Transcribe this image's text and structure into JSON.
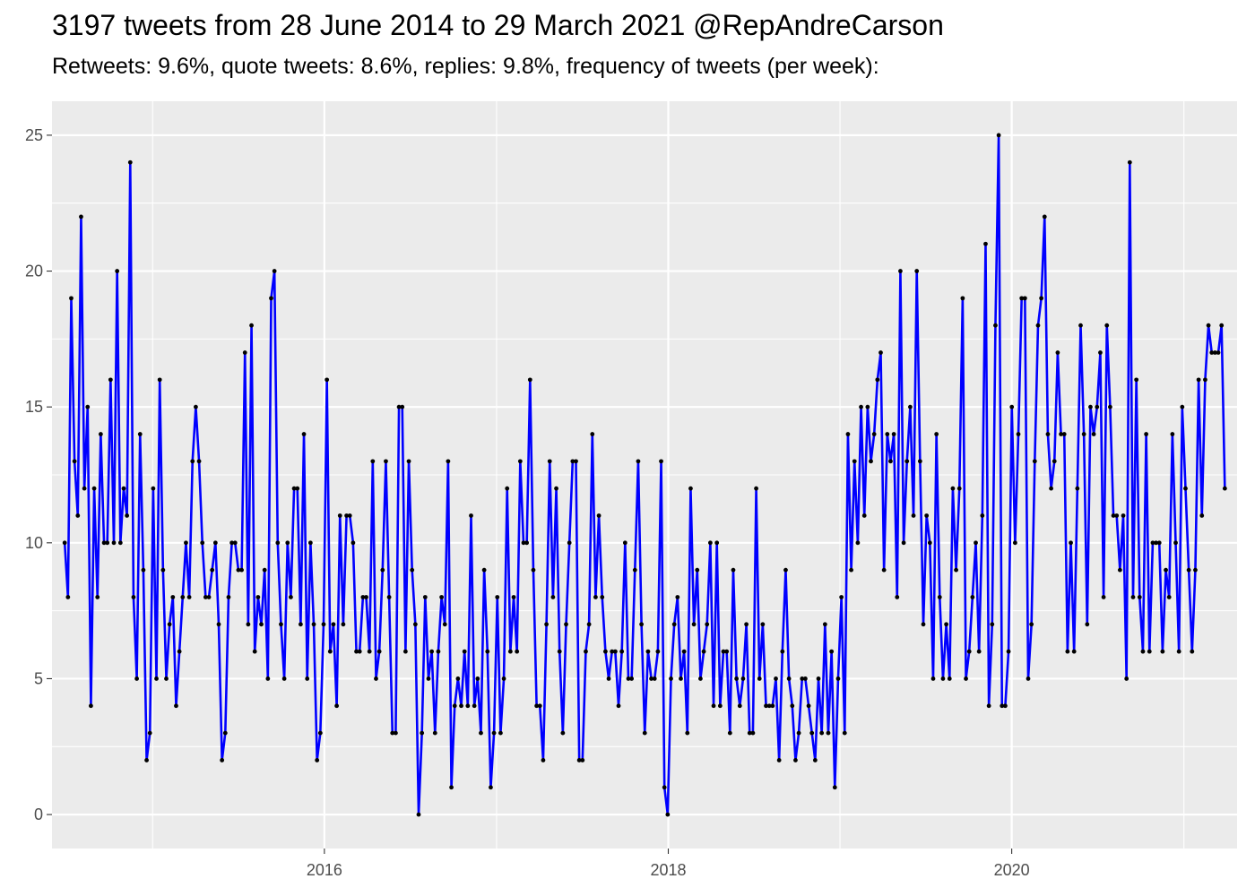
{
  "title": "3197 tweets from 28 June 2014 to 29 March 2021 @RepAndreCarson",
  "subtitle": "Retweets: 9.6%, quote tweets: 8.6%, replies: 9.8%, frequency of tweets (per week):",
  "colors": {
    "panel_background": "#ebebeb",
    "grid": "#ffffff",
    "line": "#0000ff",
    "point": "#000000",
    "tick_text": "#4d4d4d"
  },
  "chart_data": {
    "type": "line",
    "title": "3197 tweets from 28 June 2014 to 29 March 2021 @RepAndreCarson",
    "subtitle": "Retweets: 9.6%, quote tweets: 8.6%, replies: 9.8%, frequency of tweets (per week):",
    "xlabel": "",
    "ylabel": "",
    "x_start": "2014-06-28",
    "x_end": "2021-03-29",
    "xlim": [
      "2014-06-01",
      "2021-04-24"
    ],
    "ylim": [
      -1.25,
      26.25
    ],
    "x_ticks": [
      {
        "label": "2016",
        "date": "2016-01-01"
      },
      {
        "label": "2018",
        "date": "2018-01-01"
      },
      {
        "label": "2020",
        "date": "2020-01-01"
      }
    ],
    "y_ticks": [
      0,
      5,
      10,
      15,
      20,
      25
    ],
    "grid": true,
    "series": [
      {
        "values": [
          10,
          8,
          19,
          13,
          11,
          22,
          12,
          15,
          4,
          12,
          8,
          14,
          10,
          10,
          16,
          10,
          20,
          10,
          12,
          11,
          24,
          8,
          5,
          14,
          9,
          2,
          3,
          12,
          5,
          16,
          9,
          5,
          7,
          8,
          4,
          6,
          8,
          10,
          8,
          13,
          15,
          13,
          10,
          8,
          8,
          9,
          10,
          7,
          2,
          3,
          8,
          10,
          10,
          9,
          9,
          17,
          7,
          18,
          6,
          8,
          7,
          9,
          5,
          19,
          20,
          10,
          7,
          5,
          10,
          8,
          12,
          12,
          7,
          14,
          5,
          10,
          7,
          2,
          3,
          7,
          16,
          6,
          7,
          4,
          11,
          7,
          11,
          11,
          10,
          6,
          6,
          8,
          8,
          6,
          13,
          5,
          6,
          9,
          13,
          8,
          3,
          3,
          15,
          15,
          6,
          13,
          9,
          7,
          0,
          3,
          8,
          5,
          6,
          3,
          6,
          8,
          7,
          13,
          1,
          4,
          5,
          4,
          6,
          4,
          11,
          4,
          5,
          3,
          9,
          6,
          1,
          3,
          8,
          3,
          5,
          12,
          6,
          8,
          6,
          13,
          10,
          10,
          16,
          9,
          4,
          4,
          2,
          7,
          13,
          8,
          12,
          6,
          3,
          7,
          10,
          13,
          13,
          2,
          2,
          6,
          7,
          14,
          8,
          11,
          8,
          6,
          5,
          6,
          6,
          4,
          6,
          10,
          5,
          5,
          9,
          13,
          7,
          3,
          6,
          5,
          5,
          6,
          13,
          1,
          0,
          5,
          7,
          8,
          5,
          6,
          3,
          12,
          7,
          9,
          5,
          6,
          7,
          10,
          4,
          10,
          4,
          6,
          6,
          3,
          9,
          5,
          4,
          5,
          7,
          3,
          3,
          12,
          5,
          7,
          4,
          4,
          4,
          5,
          2,
          6,
          9,
          5,
          4,
          2,
          3,
          5,
          5,
          4,
          3,
          2,
          5,
          3,
          7,
          3,
          6,
          1,
          5,
          8,
          3,
          14,
          9,
          13,
          10,
          15,
          11,
          15,
          13,
          14,
          16,
          17,
          9,
          14,
          13,
          14,
          8,
          20,
          10,
          13,
          15,
          11,
          20,
          13,
          7,
          11,
          10,
          5,
          14,
          8,
          5,
          7,
          5,
          12,
          9,
          12,
          19,
          5,
          6,
          8,
          10,
          6,
          11,
          21,
          4,
          7,
          18,
          25,
          4,
          4,
          6,
          15,
          10,
          14,
          19,
          19,
          5,
          7,
          13,
          18,
          19,
          22,
          14,
          12,
          13,
          17,
          14,
          14,
          6,
          10,
          6,
          12,
          18,
          14,
          7,
          15,
          14,
          15,
          17,
          8,
          18,
          15,
          11,
          11,
          9,
          11,
          5,
          24,
          8,
          16,
          8,
          6,
          14,
          6,
          10,
          10,
          10,
          6,
          9,
          8,
          14,
          10,
          6,
          15,
          12,
          9,
          6,
          9,
          16,
          11,
          16,
          18,
          17,
          17,
          17,
          18,
          12
        ]
      }
    ]
  }
}
